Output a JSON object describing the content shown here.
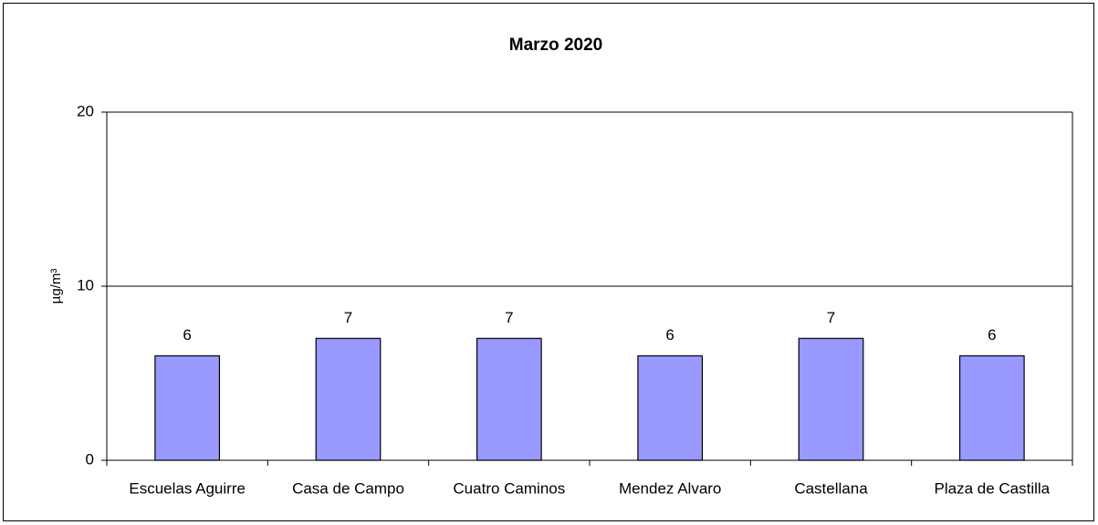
{
  "chart_data": {
    "type": "bar",
    "title": "Marzo 2020",
    "y_label": "µg/m³",
    "categories": [
      "Escuelas Aguirre",
      "Casa de Campo",
      "Cuatro Caminos",
      "Mendez Alvaro",
      "Castellana",
      "Plaza de Castilla"
    ],
    "values": [
      6,
      7,
      7,
      6,
      7,
      6
    ],
    "color": "#9999ff",
    "ylim": [
      0,
      20
    ],
    "yticks": [
      0,
      10,
      20
    ],
    "grid": true
  }
}
